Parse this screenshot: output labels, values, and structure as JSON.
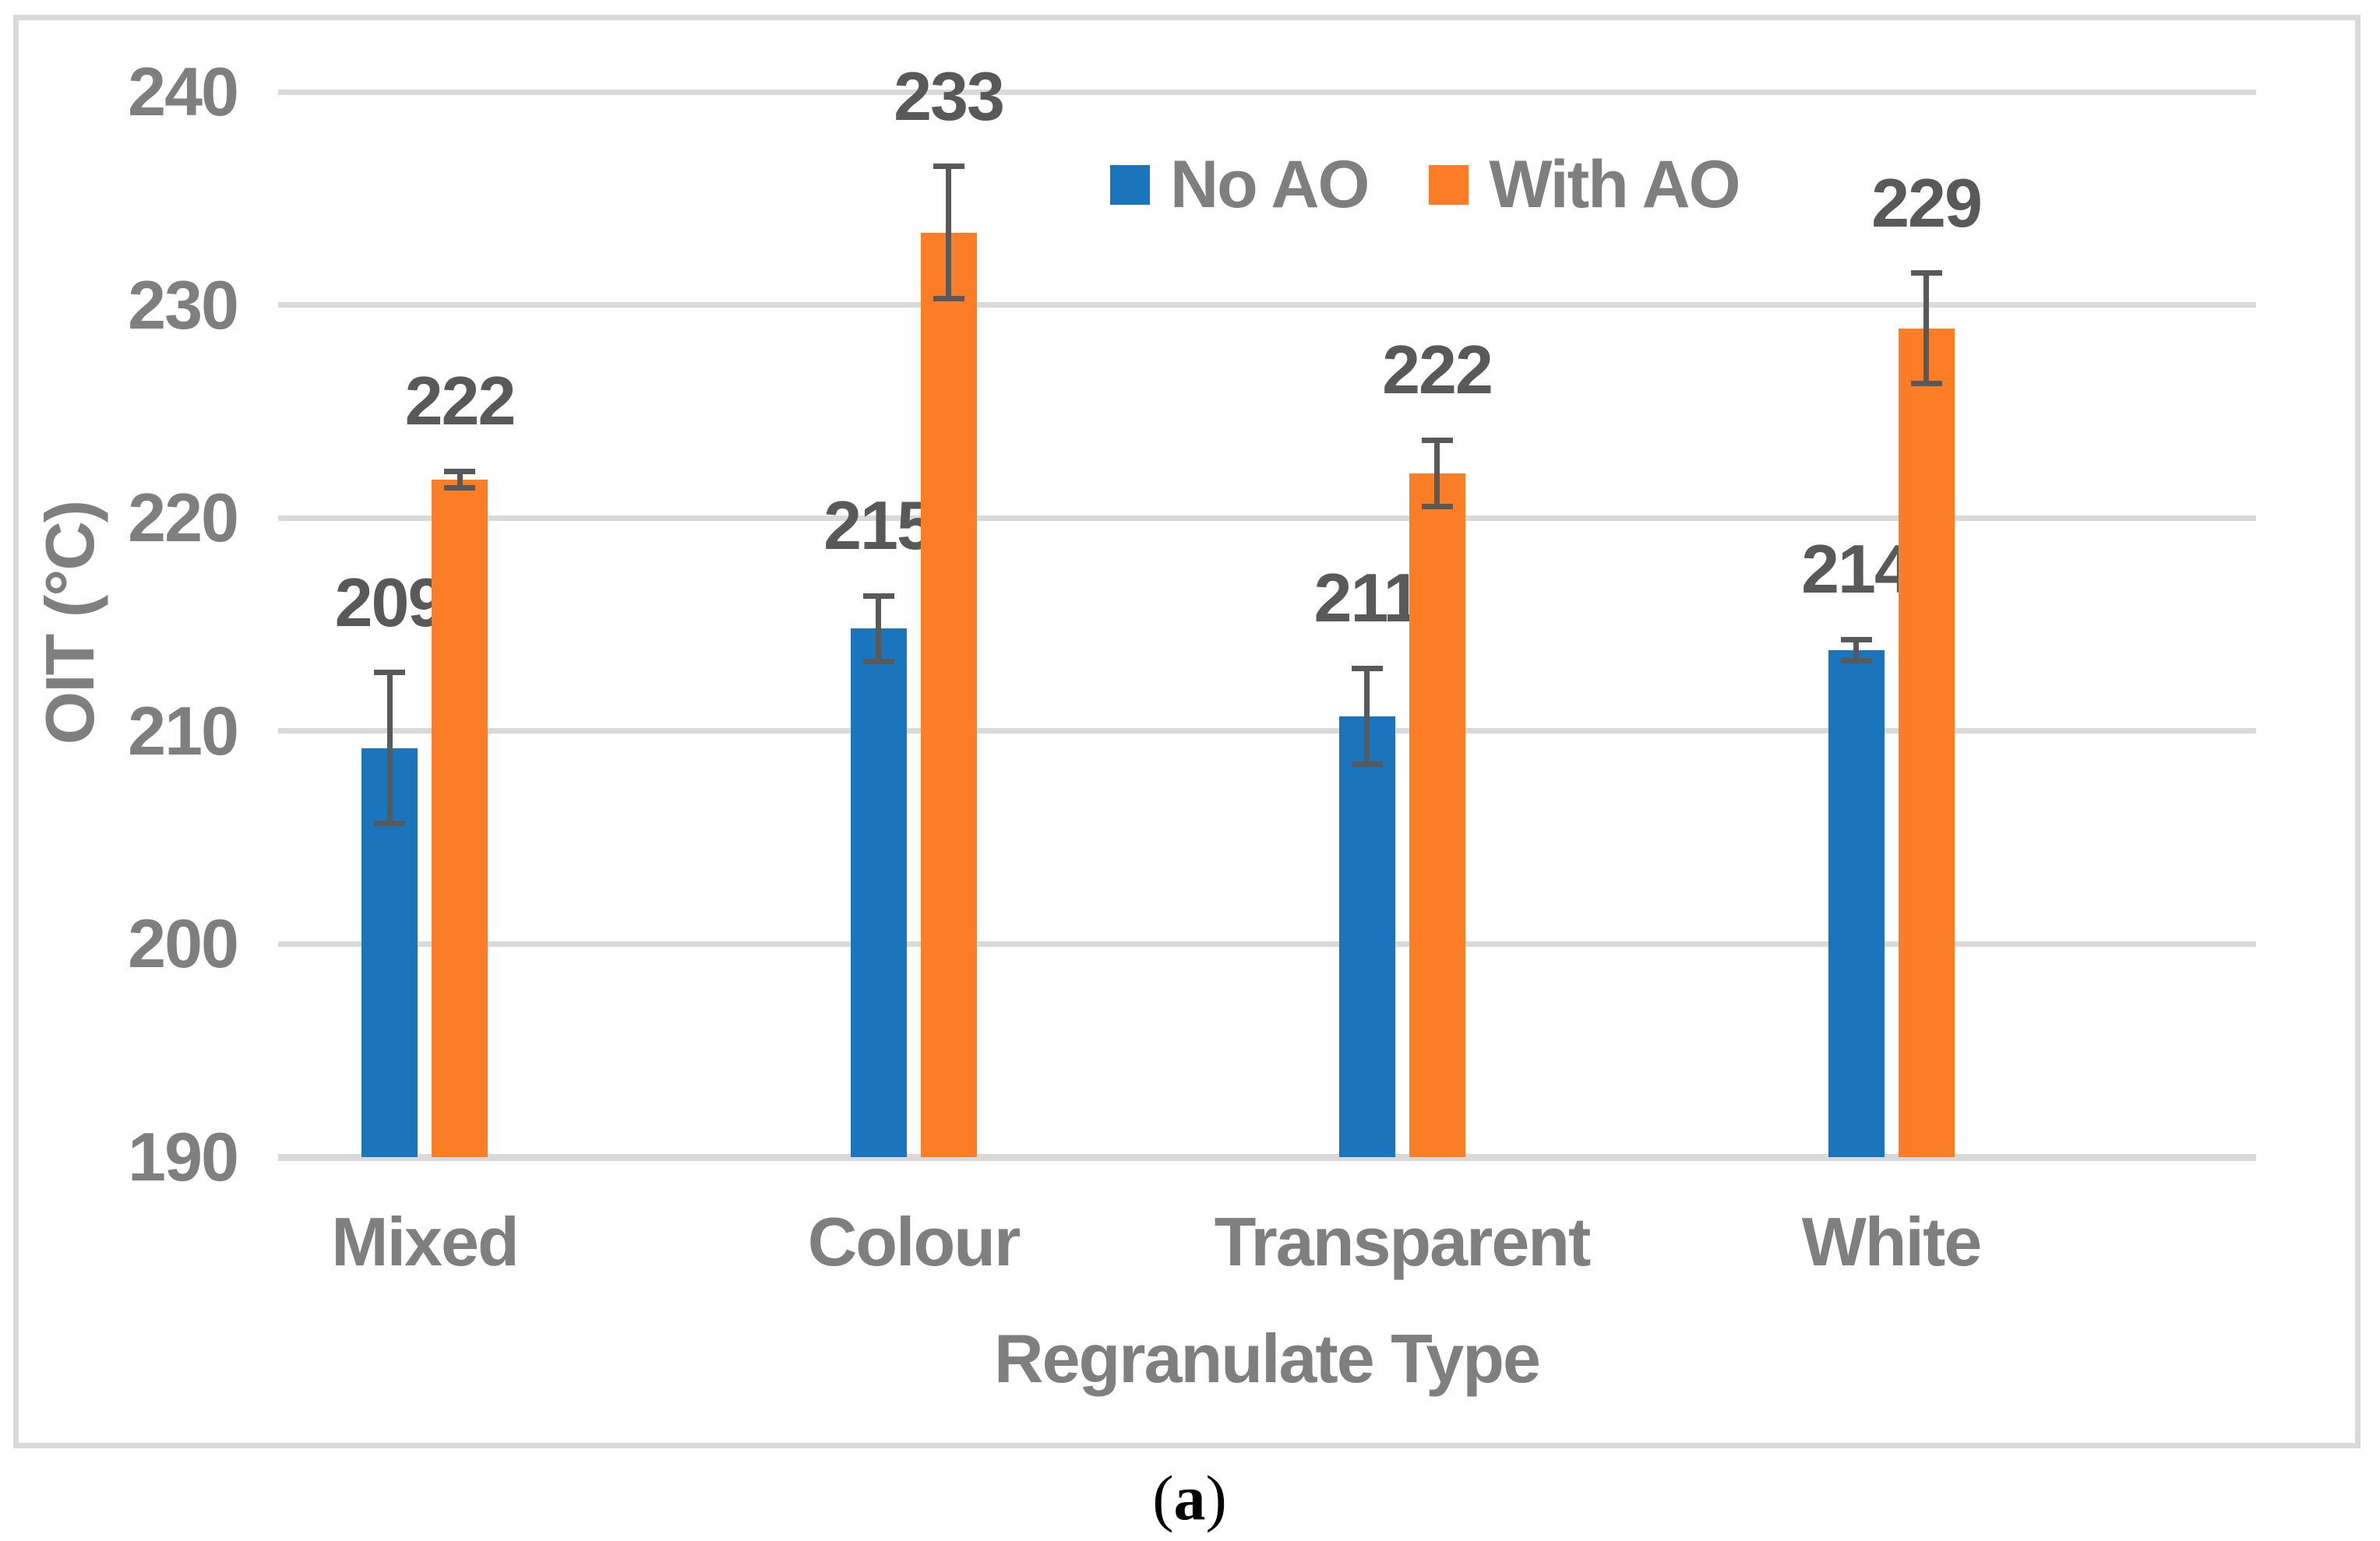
{
  "chart_data": {
    "type": "bar",
    "title": "",
    "categories": [
      "Mixed",
      "Colour",
      "Transparent",
      "White"
    ],
    "series": [
      {
        "name": "No AO",
        "color": "#1B75BC",
        "values": [
          209.2,
          214.8,
          210.7,
          213.8
        ],
        "data_labels": [
          "209",
          "215",
          "211",
          "214"
        ],
        "errors": [
          3.55,
          1.55,
          2.25,
          0.5
        ]
      },
      {
        "name": "With AO",
        "color": "#FB7E26",
        "values": [
          221.8,
          233.4,
          222.1,
          228.9
        ],
        "data_labels": [
          "222",
          "233",
          "222",
          "229"
        ],
        "errors": [
          0.4,
          3.1,
          1.55,
          2.6
        ]
      }
    ],
    "xlabel": "Regranulate Type",
    "ylabel": "OIT (°C)",
    "ylim": [
      190,
      240
    ],
    "yticks": [
      240,
      230,
      220,
      210,
      200,
      190
    ],
    "grid": true,
    "error_bars": true,
    "legend_position": "top-center"
  },
  "caption": {
    "open": "(",
    "label": "a",
    "close": ")"
  },
  "styles": {
    "background": "#FFFFFF",
    "border_color": "#D9D9D9",
    "grid_color": "#D9D9D9",
    "tick_label_color": "#7F7F7F",
    "axis_title_color": "#7F7F7F",
    "data_label_color": "#595959",
    "error_bar_color": "#595959",
    "caption_color": "#000000"
  }
}
